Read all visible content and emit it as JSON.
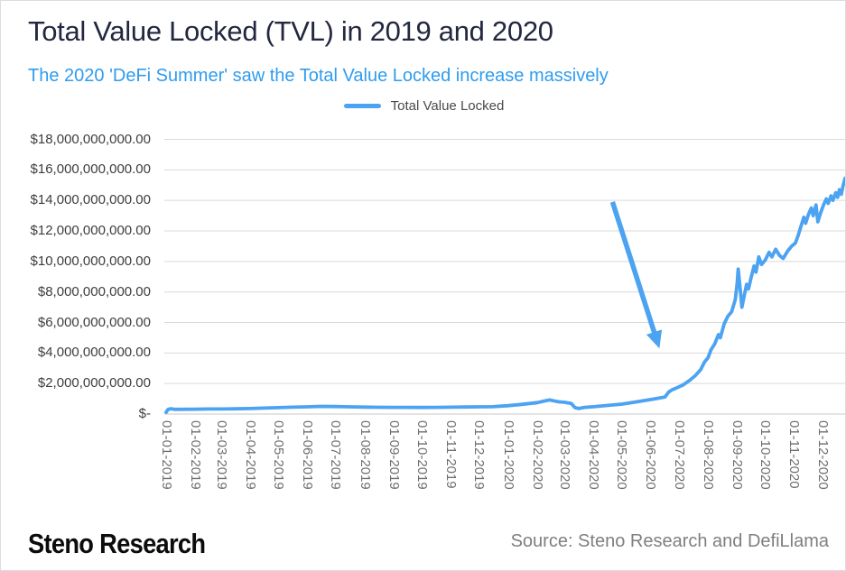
{
  "header": {
    "title": "Total Value Locked (TVL) in 2019 and 2020",
    "subtitle": "The 2020 'DeFi Summer' saw the Total Value Locked increase massively"
  },
  "legend": {
    "label": "Total Value Locked"
  },
  "footer": {
    "brand": "Steno Research",
    "source": "Source: Steno Research and DefiLlama"
  },
  "colors": {
    "title_navy": "#23273f",
    "subtitle_blue": "#2f9cee",
    "line_blue": "#4ba3f1",
    "grid_gray": "#d9d9d9",
    "axis_gray": "#c8c8c8",
    "y_label_gray": "#3d3d3d",
    "x_label_gray": "#6e6e6e",
    "source_gray": "#7f7f7f"
  },
  "chart_data": {
    "type": "line",
    "title": "Total Value Locked (TVL) in 2019 and 2020",
    "xlabel": "",
    "ylabel": "",
    "ylim": [
      0,
      18000000000
    ],
    "x_range": [
      "2019-01-01",
      "2020-12-26"
    ],
    "grid": "horizontal",
    "legend_position": "top-center",
    "y_ticks": [
      {
        "value": 0,
        "label": "$-"
      },
      {
        "value": 2000000000,
        "label": "$2,000,000,000.00"
      },
      {
        "value": 4000000000,
        "label": "$4,000,000,000.00"
      },
      {
        "value": 6000000000,
        "label": "$6,000,000,000.00"
      },
      {
        "value": 8000000000,
        "label": "$8,000,000,000.00"
      },
      {
        "value": 10000000000,
        "label": "$10,000,000,000.00"
      },
      {
        "value": 12000000000,
        "label": "$12,000,000,000.00"
      },
      {
        "value": 14000000000,
        "label": "$14,000,000,000.00"
      },
      {
        "value": 16000000000,
        "label": "$16,000,000,000.00"
      },
      {
        "value": 18000000000,
        "label": "$18,000,000,000.00"
      }
    ],
    "x_ticks": [
      "01-01-2019",
      "01-02-2019",
      "01-03-2019",
      "01-04-2019",
      "01-05-2019",
      "01-06-2019",
      "01-07-2019",
      "01-08-2019",
      "01-09-2019",
      "01-10-2019",
      "01-11-2019",
      "01-12-2019",
      "01-01-2020",
      "01-02-2020",
      "01-03-2020",
      "01-04-2020",
      "01-05-2020",
      "01-06-2020",
      "01-07-2020",
      "01-08-2020",
      "01-09-2020",
      "01-10-2020",
      "01-11-2020",
      "01-12-2020"
    ],
    "series": [
      {
        "name": "Total Value Locked",
        "points": [
          [
            "2019-01-01",
            120000000
          ],
          [
            "2019-01-03",
            300000000
          ],
          [
            "2019-01-06",
            350000000
          ],
          [
            "2019-01-10",
            310000000
          ],
          [
            "2019-02-01",
            320000000
          ],
          [
            "2019-02-15",
            330000000
          ],
          [
            "2019-03-01",
            330000000
          ],
          [
            "2019-03-15",
            345000000
          ],
          [
            "2019-04-01",
            360000000
          ],
          [
            "2019-04-15",
            390000000
          ],
          [
            "2019-05-01",
            420000000
          ],
          [
            "2019-05-15",
            450000000
          ],
          [
            "2019-06-01",
            470000000
          ],
          [
            "2019-06-15",
            500000000
          ],
          [
            "2019-07-01",
            490000000
          ],
          [
            "2019-07-15",
            470000000
          ],
          [
            "2019-08-01",
            455000000
          ],
          [
            "2019-08-15",
            445000000
          ],
          [
            "2019-09-01",
            440000000
          ],
          [
            "2019-09-15",
            435000000
          ],
          [
            "2019-10-01",
            430000000
          ],
          [
            "2019-10-15",
            435000000
          ],
          [
            "2019-11-01",
            450000000
          ],
          [
            "2019-11-15",
            460000000
          ],
          [
            "2019-12-01",
            470000000
          ],
          [
            "2019-12-15",
            480000000
          ],
          [
            "2020-01-01",
            550000000
          ],
          [
            "2020-01-15",
            630000000
          ],
          [
            "2020-02-01",
            750000000
          ],
          [
            "2020-02-08",
            850000000
          ],
          [
            "2020-02-14",
            920000000
          ],
          [
            "2020-02-18",
            870000000
          ],
          [
            "2020-02-24",
            800000000
          ],
          [
            "2020-03-01",
            770000000
          ],
          [
            "2020-03-08",
            700000000
          ],
          [
            "2020-03-12",
            420000000
          ],
          [
            "2020-03-16",
            360000000
          ],
          [
            "2020-03-22",
            440000000
          ],
          [
            "2020-04-01",
            480000000
          ],
          [
            "2020-04-15",
            560000000
          ],
          [
            "2020-05-01",
            650000000
          ],
          [
            "2020-05-15",
            780000000
          ],
          [
            "2020-06-01",
            950000000
          ],
          [
            "2020-06-10",
            1050000000
          ],
          [
            "2020-06-16",
            1120000000
          ],
          [
            "2020-06-20",
            1450000000
          ],
          [
            "2020-06-24",
            1600000000
          ],
          [
            "2020-06-28",
            1700000000
          ],
          [
            "2020-07-05",
            1900000000
          ],
          [
            "2020-07-12",
            2200000000
          ],
          [
            "2020-07-18",
            2500000000
          ],
          [
            "2020-07-24",
            2900000000
          ],
          [
            "2020-07-28",
            3400000000
          ],
          [
            "2020-08-01",
            3700000000
          ],
          [
            "2020-08-04",
            4200000000
          ],
          [
            "2020-08-08",
            4600000000
          ],
          [
            "2020-08-12",
            5200000000
          ],
          [
            "2020-08-14",
            5000000000
          ],
          [
            "2020-08-18",
            5900000000
          ],
          [
            "2020-08-22",
            6400000000
          ],
          [
            "2020-08-26",
            6700000000
          ],
          [
            "2020-08-30",
            7500000000
          ],
          [
            "2020-09-01",
            8600000000
          ],
          [
            "2020-09-02",
            9500000000
          ],
          [
            "2020-09-04",
            8300000000
          ],
          [
            "2020-09-06",
            7000000000
          ],
          [
            "2020-09-09",
            7900000000
          ],
          [
            "2020-09-11",
            8500000000
          ],
          [
            "2020-09-13",
            8200000000
          ],
          [
            "2020-09-16",
            9000000000
          ],
          [
            "2020-09-19",
            9700000000
          ],
          [
            "2020-09-21",
            9300000000
          ],
          [
            "2020-09-24",
            10300000000
          ],
          [
            "2020-09-27",
            9800000000
          ],
          [
            "2020-10-01",
            10100000000
          ],
          [
            "2020-10-05",
            10600000000
          ],
          [
            "2020-10-08",
            10300000000
          ],
          [
            "2020-10-12",
            10800000000
          ],
          [
            "2020-10-16",
            10400000000
          ],
          [
            "2020-10-20",
            10200000000
          ],
          [
            "2020-10-25",
            10700000000
          ],
          [
            "2020-10-29",
            11000000000
          ],
          [
            "2020-11-02",
            11200000000
          ],
          [
            "2020-11-05",
            11700000000
          ],
          [
            "2020-11-08",
            12300000000
          ],
          [
            "2020-11-11",
            12900000000
          ],
          [
            "2020-11-13",
            12500000000
          ],
          [
            "2020-11-16",
            13100000000
          ],
          [
            "2020-11-19",
            13500000000
          ],
          [
            "2020-11-21",
            13000000000
          ],
          [
            "2020-11-24",
            13700000000
          ],
          [
            "2020-11-26",
            12600000000
          ],
          [
            "2020-11-29",
            13200000000
          ],
          [
            "2020-12-02",
            13700000000
          ],
          [
            "2020-12-05",
            14100000000
          ],
          [
            "2020-12-07",
            13800000000
          ],
          [
            "2020-12-10",
            14300000000
          ],
          [
            "2020-12-12",
            14000000000
          ],
          [
            "2020-12-15",
            14500000000
          ],
          [
            "2020-12-17",
            14200000000
          ],
          [
            "2020-12-19",
            14700000000
          ],
          [
            "2020-12-21",
            14400000000
          ],
          [
            "2020-12-23",
            15000000000
          ],
          [
            "2020-12-25",
            15450000000
          ]
        ]
      }
    ],
    "annotation": {
      "type": "arrow",
      "from": [
        "2020-04-21",
        13900000000
      ],
      "to": [
        "2020-06-10",
        4300000000
      ]
    }
  }
}
